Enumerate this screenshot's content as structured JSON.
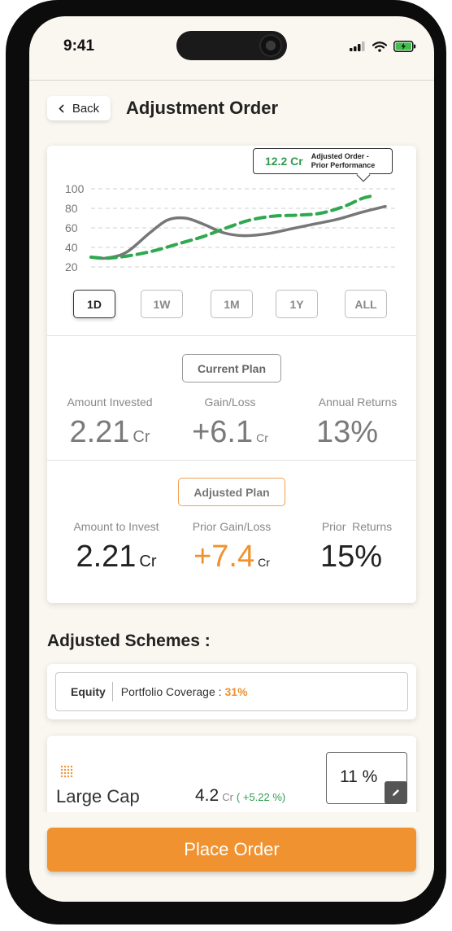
{
  "status_bar": {
    "time": "9:41"
  },
  "header": {
    "back_label": "Back",
    "title": "Adjustment Order"
  },
  "tooltip": {
    "value": "12.2 Cr",
    "label_line1": "Adjusted Order -",
    "label_line2": "Prior Performance"
  },
  "chart_data": {
    "type": "line",
    "title": "",
    "xlabel": "",
    "ylabel": "",
    "y_ticks": [
      100,
      80,
      60,
      40,
      20
    ],
    "ylim": [
      20,
      100
    ],
    "grid": true,
    "series": [
      {
        "color": "#777777",
        "style": "solid",
        "x": [
          0,
          0.05,
          0.12,
          0.2,
          0.26,
          0.32,
          0.38,
          0.45,
          0.52,
          0.6,
          0.68,
          0.76,
          0.84,
          0.92,
          1.0
        ],
        "values": [
          30,
          29,
          35,
          55,
          68,
          70,
          64,
          55,
          52,
          54,
          59,
          64,
          69,
          76,
          82
        ]
      },
      {
        "color": "#2fa84f",
        "style": "dashed",
        "x": [
          0,
          0.06,
          0.14,
          0.22,
          0.3,
          0.38,
          0.46,
          0.54,
          0.62,
          0.7,
          0.78,
          0.86,
          0.92,
          0.96
        ],
        "values": [
          30,
          29,
          32,
          37,
          44,
          51,
          60,
          68,
          72,
          73,
          75,
          82,
          90,
          93
        ]
      }
    ]
  },
  "ranges": [
    "1D",
    "1W",
    "1M",
    "1Y",
    "ALL"
  ],
  "active_range": "1D",
  "current_plan": {
    "label": "Current Plan",
    "metrics": [
      {
        "label": "Amount Invested",
        "value": "2.21",
        "unit": "Cr"
      },
      {
        "label": "Gain/Loss",
        "value": "+6.1",
        "unit": "Cr"
      },
      {
        "label": "Annual Returns",
        "value": "13%",
        "unit": ""
      }
    ]
  },
  "adjusted_plan": {
    "label": "Adjusted Plan",
    "metrics": [
      {
        "label": "Amount to Invest",
        "value": "2.21",
        "unit": "Cr"
      },
      {
        "label": "Prior Gain/Loss",
        "value": "+7.4",
        "unit": "Cr"
      },
      {
        "label": "Prior  Returns",
        "value": "15%",
        "unit": ""
      }
    ]
  },
  "schemes": {
    "title": "Adjusted Schemes :",
    "category": "Equity",
    "coverage_label": "Portfolio Coverage :",
    "coverage_value": "31%",
    "items": [
      {
        "name": "Large Cap",
        "amount": "4.2",
        "unit": "Cr",
        "change": "( +5.22 %)",
        "allocation": "11 %"
      }
    ]
  },
  "cta": {
    "label": "Place Order",
    "color": "#f0922f"
  },
  "colors": {
    "accent_orange": "#f0922f",
    "positive_green": "#2f9c4e"
  }
}
